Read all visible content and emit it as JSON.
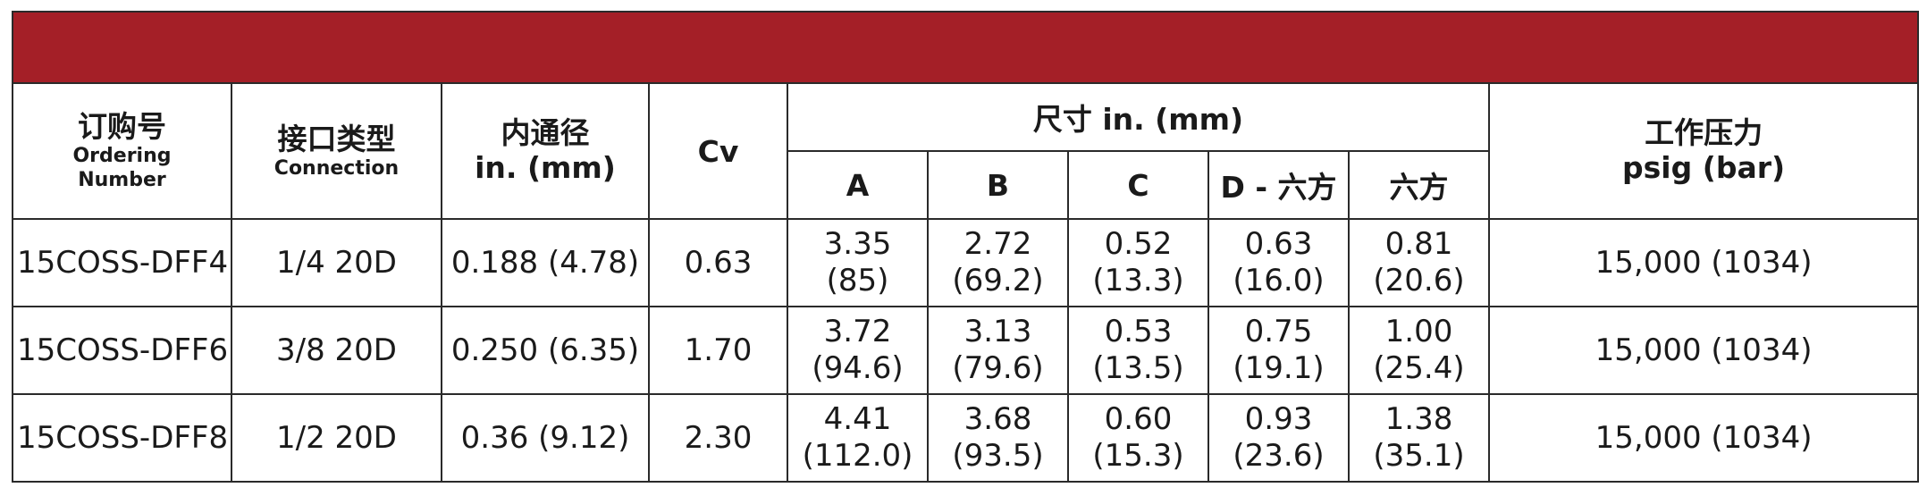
{
  "header": {
    "ordering_cn": "订购号",
    "ordering_en_1": "Ordering",
    "ordering_en_2": "Number",
    "connection_cn": "接口类型",
    "connection_en": "Connection",
    "bore_cn": "内通径",
    "bore_en": "in. (mm)",
    "cv": "Cv",
    "dimensions": "尺寸 in. (mm)",
    "dim_a": "A",
    "dim_b": "B",
    "dim_c": "C",
    "dim_d": "D - 六方",
    "dim_hex": "六方",
    "pressure_cn": "工作压力",
    "pressure_en": "psig (bar)"
  },
  "rows": [
    {
      "ordering": "15COSS-DFF4",
      "connection": "1/4 20D",
      "bore": "0.188 (4.78)",
      "cv": "0.63",
      "a_in": "3.35",
      "a_mm": "(85)",
      "b_in": "2.72",
      "b_mm": "(69.2)",
      "c_in": "0.52",
      "c_mm": "(13.3)",
      "d_in": "0.63",
      "d_mm": "(16.0)",
      "hex_in": "0.81",
      "hex_mm": "(20.6)",
      "pressure": "15,000 (1034)"
    },
    {
      "ordering": "15COSS-DFF6",
      "connection": "3/8 20D",
      "bore": "0.250 (6.35)",
      "cv": "1.70",
      "a_in": "3.72",
      "a_mm": "(94.6)",
      "b_in": "3.13",
      "b_mm": "(79.6)",
      "c_in": "0.53",
      "c_mm": "(13.5)",
      "d_in": "0.75",
      "d_mm": "(19.1)",
      "hex_in": "1.00",
      "hex_mm": "(25.4)",
      "pressure": "15,000 (1034)"
    },
    {
      "ordering": "15COSS-DFF8",
      "connection": "1/2 20D",
      "bore": "0.36 (9.12)",
      "cv": "2.30",
      "a_in": "4.41",
      "a_mm": "(112.0)",
      "b_in": "3.68",
      "b_mm": "(93.5)",
      "c_in": "0.60",
      "c_mm": "(15.3)",
      "d_in": "0.93",
      "d_mm": "(23.6)",
      "hex_in": "1.38",
      "hex_mm": "(35.1)",
      "pressure": "15,000 (1034)"
    }
  ],
  "colors": {
    "band": "#a41f27",
    "border": "#2a2a2a",
    "text": "#1a1a1a"
  }
}
